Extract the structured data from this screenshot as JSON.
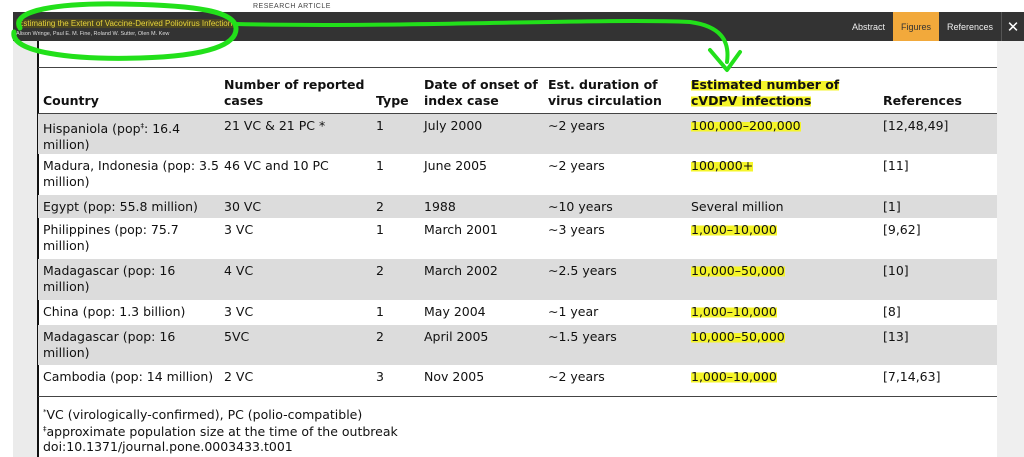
{
  "header": {
    "section_label": "RESEARCH ARTICLE",
    "article_title": "Estimating the Extent of Vaccine-Derived Poliovirus Infection",
    "authors": "Alison Wringe,  Paul E. M. Fine,  Roland W. Sutter,  Olen M. Kew",
    "tabs": [
      {
        "label": "Abstract",
        "active": false
      },
      {
        "label": "Figures",
        "active": true
      },
      {
        "label": "References",
        "active": false
      }
    ],
    "close_icon": "close-icon",
    "accent_color": "#f2a93b"
  },
  "table": {
    "columns": [
      "Country",
      "Number of reported cases",
      "Type",
      "Date of onset of index case",
      "Est. duration of virus circulation",
      "Estimated number of cVDPV infections",
      "References"
    ],
    "rows": [
      {
        "country": "Hispaniola (pop",
        "country_sup": "‡",
        "country_rest": ": 16.4 million)",
        "cases": "21 VC & 21 PC *",
        "type": "1",
        "date": "July 2000",
        "duration": "∼2 years",
        "estimate": "100,000–200,000",
        "refs": "[12,48,49]",
        "highlighted": true
      },
      {
        "country": "Madura, Indonesia (pop: 3.5 million)",
        "cases": "46 VC and 10 PC",
        "type": "1",
        "date": "June 2005",
        "duration": "∼2 years",
        "estimate": "100,000+",
        "refs": "[11]",
        "highlighted": true
      },
      {
        "country": "Egypt (pop: 55.8 million)",
        "cases": "30 VC",
        "type": "2",
        "date": "1988",
        "duration": "∼10 years",
        "estimate": "Several million",
        "refs": "[1]",
        "highlighted": false
      },
      {
        "country": "Philippines (pop: 75.7 million)",
        "cases": "3 VC",
        "type": "1",
        "date": "March 2001",
        "duration": "∼3 years",
        "estimate": "1,000–10,000",
        "refs": "[9,62]",
        "highlighted": true
      },
      {
        "country": "Madagascar (pop: 16 million)",
        "cases": "4 VC",
        "type": "2",
        "date": "March 2002",
        "duration": "∼2.5 years",
        "estimate": "10,000–50,000",
        "refs": "[10]",
        "highlighted": true
      },
      {
        "country": "China (pop: 1.3 billion)",
        "cases": "3 VC",
        "type": "1",
        "date": "May 2004",
        "duration": "∼1 year",
        "estimate": "1,000–10,000",
        "refs": "[8]",
        "highlighted": true
      },
      {
        "country": "Madagascar (pop: 16 million)",
        "cases": "5VC",
        "type": "2",
        "date": "April 2005",
        "duration": "∼1.5 years",
        "estimate": "10,000–50,000",
        "refs": "[13]",
        "highlighted": true
      },
      {
        "country": "Cambodia (pop: 14 million)",
        "cases": "2 VC",
        "type": "3",
        "date": "Nov 2005",
        "duration": "∼2 years",
        "estimate": "1,000–10,000",
        "refs": "[7,14,63]",
        "highlighted": true
      }
    ]
  },
  "footnotes": {
    "note1_mark": "*",
    "note1": "VC (virologically-confirmed), PC (polio-compatible)",
    "note2_mark": "‡",
    "note2": "approximate population size at the time of the outbreak",
    "doi": "doi:10.1371/journal.pone.0003433.t001"
  },
  "annotations": {
    "marker_color": "#22e01a",
    "highlight_color": "#f5f52a"
  }
}
